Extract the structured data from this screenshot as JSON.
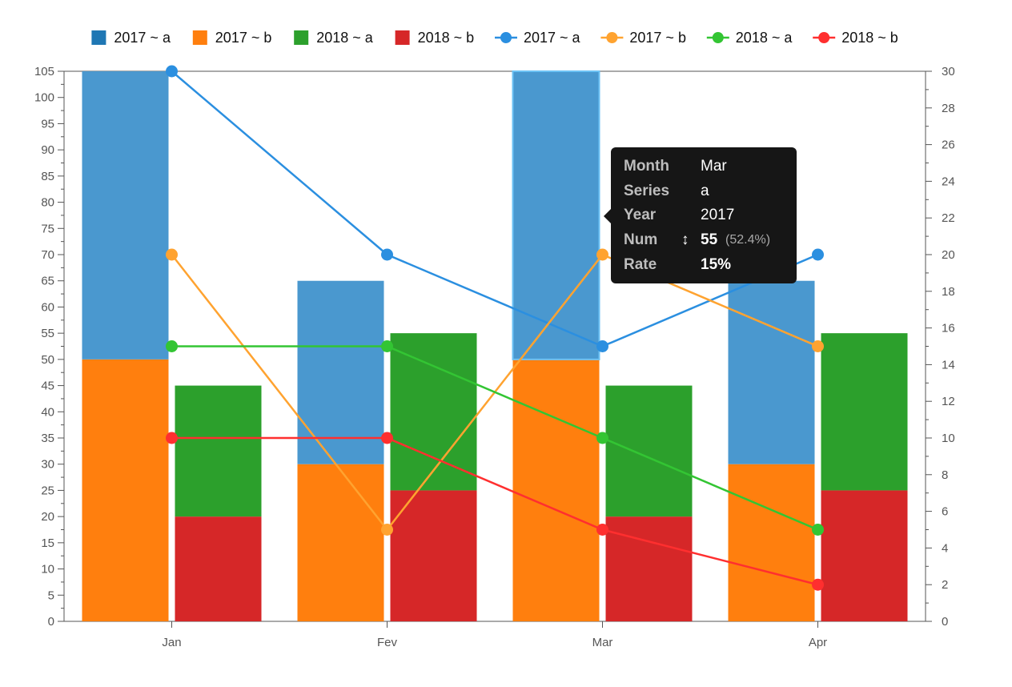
{
  "chart_data": {
    "type": "bar",
    "categories": [
      "Jan",
      "Fev",
      "Mar",
      "Apr"
    ],
    "y_left": {
      "lim": [
        0,
        105
      ],
      "ticks": [
        0,
        5,
        10,
        15,
        20,
        25,
        30,
        35,
        40,
        45,
        50,
        55,
        60,
        65,
        70,
        75,
        80,
        85,
        90,
        95,
        100,
        105
      ]
    },
    "y_right": {
      "lim": [
        0,
        30
      ],
      "ticks": [
        0,
        2,
        4,
        6,
        8,
        10,
        12,
        14,
        16,
        18,
        20,
        22,
        24,
        26,
        28,
        30
      ]
    },
    "stacks": [
      {
        "year": "2017",
        "segments": [
          {
            "name": "2017 ~ b",
            "color": "#ff7f0e",
            "values": [
              50,
              30,
              50,
              30
            ]
          },
          {
            "name": "2017 ~ a",
            "color": "#4a98cf",
            "values": [
              55,
              35,
              55,
              35
            ]
          }
        ]
      },
      {
        "year": "2018",
        "segments": [
          {
            "name": "2018 ~ b",
            "color": "#d62728",
            "values": [
              20,
              25,
              20,
              25
            ]
          },
          {
            "name": "2018 ~ a",
            "color": "#2ca02c",
            "values": [
              25,
              30,
              25,
              30
            ]
          }
        ]
      }
    ],
    "lines": [
      {
        "name": "2017 ~ a",
        "color": "#2b8fe0",
        "values": [
          30,
          20,
          15,
          20
        ]
      },
      {
        "name": "2017 ~ b",
        "color": "#ffa330",
        "values": [
          20,
          5,
          20,
          15
        ]
      },
      {
        "name": "2018 ~ a",
        "color": "#33c533",
        "values": [
          15,
          15,
          10,
          5
        ]
      },
      {
        "name": "2018 ~ b",
        "color": "#ff2f2f",
        "values": [
          10,
          10,
          5,
          2
        ]
      }
    ],
    "legend": [
      {
        "label": "2017 ~ a",
        "kind": "bar",
        "color": "#1f77b4"
      },
      {
        "label": "2017 ~ b",
        "kind": "bar",
        "color": "#ff7f0e"
      },
      {
        "label": "2018 ~ a",
        "kind": "bar",
        "color": "#2ca02c"
      },
      {
        "label": "2018 ~ b",
        "kind": "bar",
        "color": "#d62728"
      },
      {
        "label": "2017 ~ a",
        "kind": "line",
        "color": "#2b8fe0"
      },
      {
        "label": "2017 ~ b",
        "kind": "line",
        "color": "#ffa330"
      },
      {
        "label": "2018 ~ a",
        "kind": "line",
        "color": "#33c533"
      },
      {
        "label": "2018 ~ b",
        "kind": "line",
        "color": "#ff2f2f"
      }
    ],
    "legend_position": "top",
    "highlighted": {
      "category": "Mar",
      "stack": 0,
      "segment": 1
    }
  },
  "tooltip": {
    "month_label": "Month",
    "month_value": "Mar",
    "series_label": "Series",
    "series_value": "a",
    "year_label": "Year",
    "year_value": "2017",
    "num_label": "Num",
    "num_icon": "↕",
    "num_value": "55",
    "num_percent": "(52.4%)",
    "rate_label": "Rate",
    "rate_value": "15%"
  }
}
